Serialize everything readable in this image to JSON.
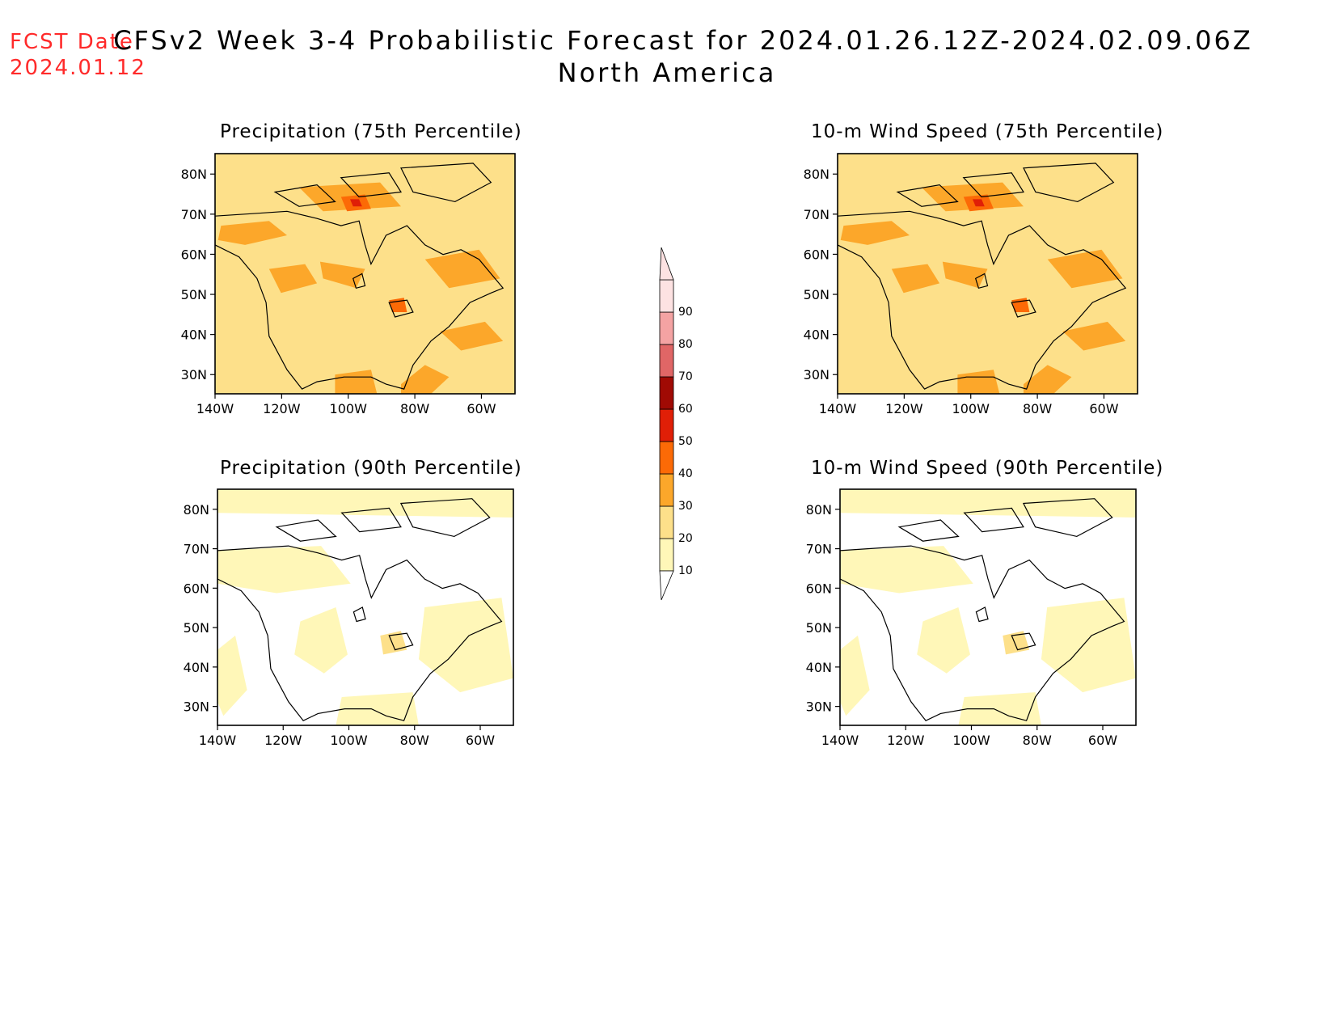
{
  "header": {
    "fcst_label": "FCST Date:",
    "fcst_date": "2024.01.12",
    "title_line1": "CFSv2 Week 3-4 Probabilistic Forecast for 2024.01.26.12Z-2024.02.09.06Z",
    "title_line2": "North America"
  },
  "panels": [
    {
      "title": "Precipitation (75th Percentile)"
    },
    {
      "title": "10-m Wind Speed (75th Percentile)"
    },
    {
      "title": "Precipitation (90th Percentile)"
    },
    {
      "title": "10-m Wind Speed (90th Percentile)"
    }
  ],
  "axes": {
    "lat_labels": [
      "80N",
      "70N",
      "60N",
      "50N",
      "40N",
      "30N"
    ],
    "lon_labels": [
      "140W",
      "120W",
      "100W",
      "80W",
      "60W"
    ]
  },
  "colorbar": {
    "levels": [
      "10",
      "20",
      "30",
      "40",
      "50",
      "60",
      "70",
      "80",
      "90"
    ],
    "colors": [
      "#fff7b8",
      "#fde08a",
      "#fca72a",
      "#fc6a06",
      "#e01f07",
      "#a00a04",
      "#e06666",
      "#f4a3a3",
      "#fde2e2"
    ]
  },
  "map_style": {
    "coast_color": "#000000",
    "low_fill": "#fff7b8",
    "mid_fill": "#fde08a",
    "high_fill": "#fca72a",
    "very_high_fill": "#fc6a06",
    "extreme_fill": "#e01f07"
  }
}
